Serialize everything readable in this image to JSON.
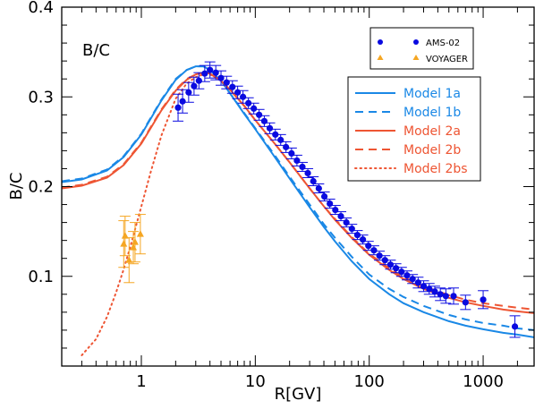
{
  "chart_data": {
    "type": "line",
    "xlabel": "R[GV]",
    "ylabel": "B/C",
    "panel_label": "B/C",
    "xscale": "log",
    "xlim": [
      0.2,
      2800
    ],
    "ylim": [
      0.0,
      0.4
    ],
    "x_ticks": [
      1,
      10,
      100,
      1000
    ],
    "x_tick_labels": [
      "1",
      "10",
      "100",
      "1000"
    ],
    "y_ticks": [
      0.1,
      0.2,
      0.3,
      0.4
    ],
    "y_tick_labels": [
      "0.1",
      "0.2",
      "0.3",
      "0.4"
    ],
    "grid": false,
    "legend_lines": {
      "placement": "top-right",
      "entries": [
        {
          "name": "Model 1a",
          "color": "#1a88e6",
          "style": "solid"
        },
        {
          "name": "Model 1b",
          "color": "#1a88e6",
          "style": "dashed"
        },
        {
          "name": "Model 2a",
          "color": "#ee5533",
          "style": "solid"
        },
        {
          "name": "Model 2b",
          "color": "#ee5533",
          "style": "dashed"
        },
        {
          "name": "Model 2bs",
          "color": "#ee5533",
          "style": "dotted"
        }
      ]
    },
    "legend_data": {
      "placement": "top-right",
      "entries": [
        {
          "name": "AMS-02",
          "color": "#0a0ae0",
          "marker": "circle"
        },
        {
          "name": "VOYAGER",
          "color": "#f5a623",
          "marker": "triangle"
        }
      ]
    },
    "series": [
      {
        "name": "Model 1a",
        "color": "#1a88e6",
        "style": "solid",
        "x": [
          0.2,
          0.3,
          0.5,
          0.7,
          1.0,
          1.5,
          2.0,
          2.5,
          3.0,
          3.5,
          4.0,
          5.0,
          6.0,
          8.0,
          10,
          15,
          20,
          30,
          40,
          50,
          70,
          100,
          150,
          200,
          300,
          500,
          700,
          1000,
          1500,
          2000,
          2800
        ],
        "y": [
          0.205,
          0.208,
          0.218,
          0.233,
          0.258,
          0.296,
          0.319,
          0.33,
          0.334,
          0.334,
          0.33,
          0.318,
          0.304,
          0.281,
          0.264,
          0.232,
          0.209,
          0.177,
          0.155,
          0.139,
          0.117,
          0.097,
          0.08,
          0.07,
          0.06,
          0.05,
          0.045,
          0.041,
          0.037,
          0.035,
          0.032
        ]
      },
      {
        "name": "Model 1b",
        "color": "#1a88e6",
        "style": "dashed",
        "x": [
          0.2,
          0.3,
          0.5,
          0.7,
          1.0,
          1.5,
          2.0,
          2.5,
          3.0,
          3.5,
          4.0,
          5.0,
          6.0,
          8.0,
          10,
          15,
          20,
          30,
          40,
          50,
          70,
          100,
          150,
          200,
          300,
          500,
          700,
          1000,
          1500,
          2000,
          2800
        ],
        "y": [
          0.206,
          0.209,
          0.219,
          0.234,
          0.259,
          0.297,
          0.32,
          0.33,
          0.334,
          0.334,
          0.33,
          0.318,
          0.304,
          0.282,
          0.265,
          0.234,
          0.211,
          0.18,
          0.158,
          0.143,
          0.122,
          0.102,
          0.086,
          0.077,
          0.067,
          0.057,
          0.052,
          0.048,
          0.045,
          0.042,
          0.04
        ]
      },
      {
        "name": "Model 2a",
        "color": "#ee5533",
        "style": "solid",
        "x": [
          0.2,
          0.3,
          0.5,
          0.7,
          1.0,
          1.5,
          2.0,
          2.5,
          3.0,
          3.5,
          4.0,
          5.0,
          6.0,
          8.0,
          10,
          15,
          20,
          30,
          40,
          50,
          70,
          100,
          150,
          200,
          300,
          500,
          700,
          1000,
          1500,
          2000,
          2800
        ],
        "y": [
          0.198,
          0.201,
          0.21,
          0.224,
          0.248,
          0.285,
          0.307,
          0.319,
          0.325,
          0.327,
          0.326,
          0.318,
          0.308,
          0.29,
          0.274,
          0.247,
          0.227,
          0.198,
          0.178,
          0.163,
          0.143,
          0.124,
          0.107,
          0.097,
          0.086,
          0.076,
          0.071,
          0.067,
          0.063,
          0.061,
          0.059
        ]
      },
      {
        "name": "Model 2b",
        "color": "#ee5533",
        "style": "dashed",
        "x": [
          0.2,
          0.3,
          0.5,
          0.7,
          1.0,
          1.5,
          2.0,
          2.5,
          3.0,
          3.5,
          4.0,
          5.0,
          6.0,
          8.0,
          10,
          15,
          20,
          30,
          40,
          50,
          70,
          100,
          150,
          200,
          300,
          500,
          700,
          1000,
          1500,
          2000,
          2800
        ],
        "y": [
          0.199,
          0.202,
          0.211,
          0.225,
          0.249,
          0.286,
          0.308,
          0.32,
          0.325,
          0.327,
          0.326,
          0.318,
          0.308,
          0.29,
          0.274,
          0.247,
          0.227,
          0.198,
          0.178,
          0.164,
          0.144,
          0.125,
          0.109,
          0.099,
          0.089,
          0.079,
          0.074,
          0.07,
          0.067,
          0.065,
          0.063
        ]
      },
      {
        "name": "Model 2bs",
        "color": "#ee5533",
        "style": "dotted",
        "x": [
          0.3,
          0.4,
          0.5,
          0.6,
          0.7,
          0.8,
          1.0,
          1.2,
          1.5,
          2.0,
          2.5,
          3.0,
          3.5,
          4.0,
          5.0,
          6.0,
          8.0,
          10
        ],
        "y": [
          0.012,
          0.03,
          0.055,
          0.082,
          0.108,
          0.133,
          0.178,
          0.215,
          0.257,
          0.298,
          0.315,
          0.322,
          0.325,
          0.325,
          0.318,
          0.308,
          0.29,
          0.274
        ]
      }
    ],
    "points": [
      {
        "name": "AMS-02",
        "color": "#0a0ae0",
        "marker": "circle",
        "x": [
          2.1,
          2.3,
          2.6,
          2.9,
          3.2,
          3.6,
          4.0,
          4.5,
          5.0,
          5.6,
          6.3,
          7.0,
          7.8,
          8.7,
          9.7,
          10.8,
          12.0,
          13.4,
          15.0,
          16.7,
          18.6,
          20.8,
          23.2,
          25.9,
          28.9,
          32.3,
          36.1,
          40.4,
          45.1,
          50.4,
          56.4,
          63.0,
          70.4,
          78.7,
          87.9,
          98.3,
          109.9,
          122.9,
          137.4,
          153.6,
          171.8,
          192.1,
          214.8,
          240.2,
          268.7,
          300.5,
          336.2,
          376.0,
          420.6,
          470.5,
          550,
          700,
          1000,
          1900
        ],
        "y": [
          0.288,
          0.295,
          0.305,
          0.312,
          0.318,
          0.326,
          0.33,
          0.327,
          0.321,
          0.316,
          0.311,
          0.305,
          0.3,
          0.293,
          0.287,
          0.28,
          0.273,
          0.265,
          0.258,
          0.252,
          0.244,
          0.237,
          0.229,
          0.222,
          0.215,
          0.206,
          0.198,
          0.189,
          0.181,
          0.174,
          0.167,
          0.16,
          0.153,
          0.146,
          0.141,
          0.134,
          0.129,
          0.123,
          0.118,
          0.113,
          0.109,
          0.105,
          0.101,
          0.097,
          0.093,
          0.089,
          0.086,
          0.083,
          0.08,
          0.078,
          0.078,
          0.071,
          0.074,
          0.044
        ],
        "yerr": [
          0.015,
          0.013,
          0.011,
          0.01,
          0.009,
          0.009,
          0.009,
          0.008,
          0.008,
          0.007,
          0.007,
          0.007,
          0.007,
          0.006,
          0.006,
          0.006,
          0.006,
          0.006,
          0.006,
          0.006,
          0.006,
          0.006,
          0.006,
          0.005,
          0.005,
          0.005,
          0.005,
          0.005,
          0.005,
          0.005,
          0.005,
          0.005,
          0.005,
          0.005,
          0.005,
          0.005,
          0.005,
          0.005,
          0.005,
          0.005,
          0.005,
          0.005,
          0.005,
          0.005,
          0.006,
          0.006,
          0.006,
          0.006,
          0.007,
          0.008,
          0.009,
          0.008,
          0.01,
          0.012
        ]
      },
      {
        "name": "VOYAGER",
        "color": "#f5a623",
        "marker": "triangle",
        "x": [
          0.7,
          0.72,
          0.78,
          0.85,
          0.88,
          0.98
        ],
        "y": [
          0.136,
          0.145,
          0.118,
          0.132,
          0.138,
          0.147
        ],
        "yerr": [
          0.026,
          0.022,
          0.025,
          0.018,
          0.022,
          0.022
        ]
      }
    ]
  }
}
